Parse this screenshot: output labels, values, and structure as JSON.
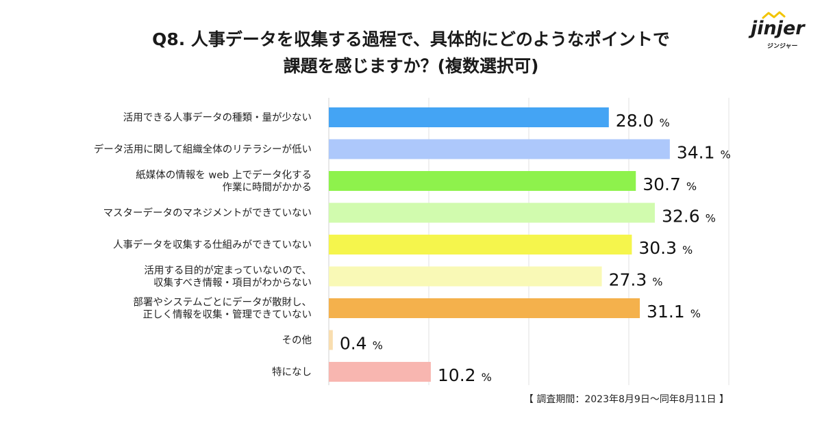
{
  "title_lines": [
    "Q8. 人事データを収集する過程で、具体的にどのようなポイントで",
    "課題を感じますか？(複数選択可)"
  ],
  "logo": {
    "word": "jinjer",
    "sub": "ジンジャー"
  },
  "footnote": "【 調査期間：2023年8月9日〜同年8月11日 】",
  "chart_data": {
    "type": "bar",
    "orientation": "horizontal",
    "title": "Q8. 人事データを収集する過程で、具体的にどのようなポイントで課題を感じますか？(複数選択可)",
    "unit": "%",
    "xlim": [
      0,
      40
    ],
    "gridlines": [
      0,
      10,
      20,
      30,
      40
    ],
    "categories": [
      [
        "活用できる人事データの種類・量が少ない"
      ],
      [
        "データ活用に関して組織全体のリテラシーが低い"
      ],
      [
        "紙媒体の情報を web 上でデータ化する",
        "作業に時間がかかる"
      ],
      [
        "マスターデータのマネジメントができていない"
      ],
      [
        "人事データを収集する仕組みができていない"
      ],
      [
        "活用する目的が定まっていないので、",
        "収集すべき情報・項目がわからない"
      ],
      [
        "部署やシステムごとにデータが散財し、",
        "正しく情報を収集・管理できていない"
      ],
      [
        "その他"
      ],
      [
        "特になし"
      ]
    ],
    "values": [
      28.0,
      34.1,
      30.7,
      32.6,
      30.3,
      27.3,
      31.1,
      0.4,
      10.2
    ],
    "value_labels": [
      "28.0",
      "34.1",
      "30.7",
      "32.6",
      "30.3",
      "27.3",
      "31.1",
      "0.4",
      "10.2"
    ],
    "colors": [
      "#44a4f4",
      "#adc8fb",
      "#8ef24c",
      "#d1fbae",
      "#f5f54c",
      "#f9f9b6",
      "#f4b14c",
      "#f9deb0",
      "#f8b6b0"
    ]
  }
}
